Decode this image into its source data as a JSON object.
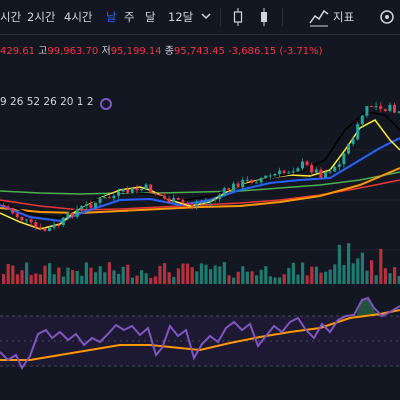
{
  "toolbar": {
    "timeframes": [
      "시간",
      "2시간",
      "4시간",
      "날",
      "주",
      "달",
      "12달"
    ],
    "active_timeframe": "날",
    "indicators_label": "지표"
  },
  "ohlc": {
    "open_fragment": "429.61",
    "high_label": "고",
    "high_value": "99,963.70",
    "low_label": "저",
    "low_value": "95,199.14",
    "close_label": "종",
    "close_value": "95,743.45",
    "change": "-3,686.15 (-3.71%)"
  },
  "indicator_params": "9 26 52 26 20 1 2",
  "colors": {
    "background": "#131722",
    "up": "#26a69a",
    "down": "#f23645",
    "accent": "#2962ff",
    "rsi": "#7e57c2",
    "rsi_ma": "#ff9800"
  },
  "icons": [
    "chevron-down-icon",
    "candlestick-icon",
    "bar-chart-icon",
    "indicators-icon",
    "settings-icon"
  ]
}
